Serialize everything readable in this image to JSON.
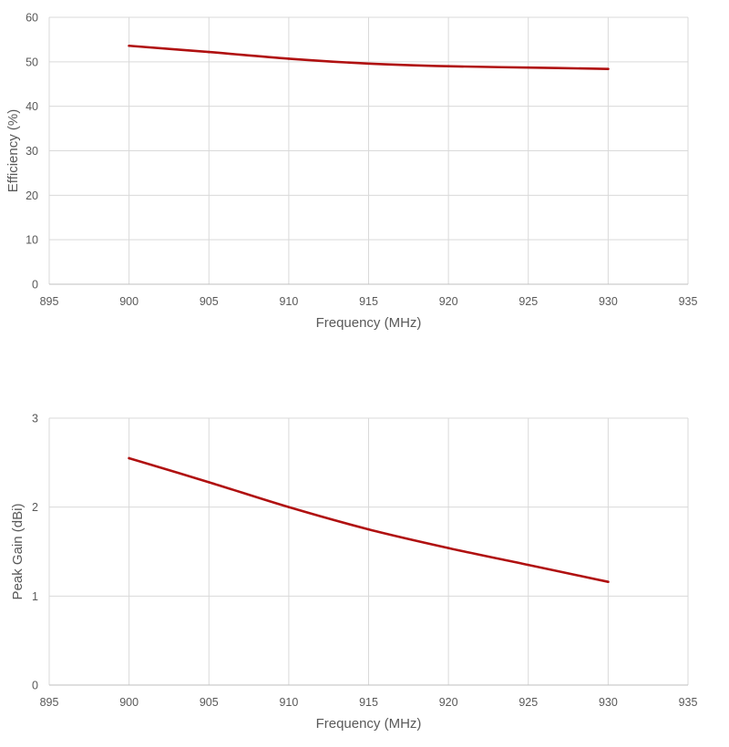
{
  "chart_data": [
    {
      "type": "line",
      "title": "",
      "xlabel": "Frequency (MHz)",
      "ylabel": "Efficiency (%)",
      "xlim": [
        895,
        935
      ],
      "ylim": [
        0,
        60
      ],
      "x_ticks": [
        895,
        900,
        905,
        910,
        915,
        920,
        925,
        930,
        935
      ],
      "y_ticks": [
        0,
        10,
        20,
        30,
        40,
        50,
        60
      ],
      "grid": true,
      "legend": "none",
      "series": [
        {
          "color": "#b01010",
          "x": [
            900,
            905,
            910,
            915,
            920,
            925,
            930
          ],
          "y": [
            53.6,
            52.2,
            50.7,
            49.6,
            49.0,
            48.7,
            48.4
          ]
        }
      ]
    },
    {
      "type": "line",
      "title": "",
      "xlabel": "Frequency (MHz)",
      "ylabel": "Peak Gain (dBi)",
      "xlim": [
        895,
        935
      ],
      "ylim": [
        0,
        3
      ],
      "x_ticks": [
        895,
        900,
        905,
        910,
        915,
        920,
        925,
        930,
        935
      ],
      "y_ticks": [
        0,
        1,
        2,
        3
      ],
      "grid": true,
      "legend": "none",
      "series": [
        {
          "color": "#b01010",
          "x": [
            900,
            905,
            910,
            915,
            920,
            925,
            930
          ],
          "y": [
            2.55,
            2.28,
            2.0,
            1.75,
            1.54,
            1.35,
            1.16
          ]
        }
      ]
    }
  ]
}
